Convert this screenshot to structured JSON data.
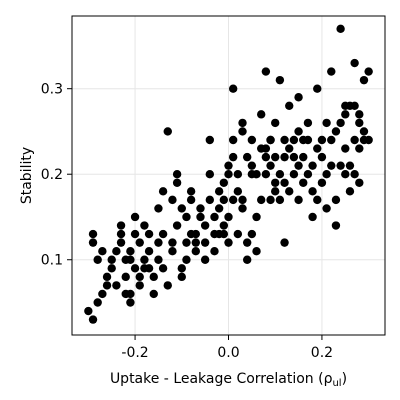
{
  "chart_data": {
    "type": "scatter",
    "title": "",
    "xlabel_main": "Uptake - Leakage Correlation (",
    "xlabel_symbol": "ρ",
    "xlabel_sub": "ul",
    "xlabel_close": ")",
    "ylabel": "Stability",
    "xlim": [
      -0.335,
      0.335
    ],
    "ylim": [
      0.012,
      0.385
    ],
    "xticks": [
      -0.2,
      0.0,
      0.2
    ],
    "xtick_labels": [
      "-0.2",
      "0.0",
      "0.2"
    ],
    "yticks": [
      0.1,
      0.2,
      0.3
    ],
    "ytick_labels": [
      "0.1",
      "0.2",
      "0.3"
    ],
    "grid": true,
    "legend": "none",
    "marker_color": "#000000",
    "series": [
      {
        "points": [
          [
            -0.3,
            0.04
          ],
          [
            -0.29,
            0.03
          ],
          [
            -0.28,
            0.05
          ],
          [
            -0.29,
            0.13
          ],
          [
            -0.29,
            0.12
          ],
          [
            -0.28,
            0.1
          ],
          [
            -0.27,
            0.11
          ],
          [
            -0.27,
            0.06
          ],
          [
            -0.26,
            0.07
          ],
          [
            -0.26,
            0.08
          ],
          [
            -0.25,
            0.09
          ],
          [
            -0.25,
            0.1
          ],
          [
            -0.24,
            0.07
          ],
          [
            -0.24,
            0.11
          ],
          [
            -0.23,
            0.14
          ],
          [
            -0.23,
            0.13
          ],
          [
            -0.23,
            0.12
          ],
          [
            -0.22,
            0.1
          ],
          [
            -0.22,
            0.08
          ],
          [
            -0.22,
            0.06
          ],
          [
            -0.21,
            0.05
          ],
          [
            -0.21,
            0.06
          ],
          [
            -0.21,
            0.1
          ],
          [
            -0.21,
            0.11
          ],
          [
            -0.2,
            0.15
          ],
          [
            -0.2,
            0.09
          ],
          [
            -0.2,
            0.13
          ],
          [
            -0.19,
            0.12
          ],
          [
            -0.19,
            0.08
          ],
          [
            -0.19,
            0.07
          ],
          [
            -0.18,
            0.09
          ],
          [
            -0.18,
            0.1
          ],
          [
            -0.18,
            0.14
          ],
          [
            -0.17,
            0.11
          ],
          [
            -0.17,
            0.13
          ],
          [
            -0.17,
            0.09
          ],
          [
            -0.16,
            0.06
          ],
          [
            -0.16,
            0.08
          ],
          [
            -0.15,
            0.16
          ],
          [
            -0.15,
            0.1
          ],
          [
            -0.15,
            0.12
          ],
          [
            -0.14,
            0.09
          ],
          [
            -0.14,
            0.13
          ],
          [
            -0.13,
            0.07
          ],
          [
            -0.13,
            0.25
          ],
          [
            -0.14,
            0.18
          ],
          [
            -0.12,
            0.17
          ],
          [
            -0.12,
            0.12
          ],
          [
            -0.12,
            0.11
          ],
          [
            -0.11,
            0.14
          ],
          [
            -0.11,
            0.2
          ],
          [
            -0.11,
            0.19
          ],
          [
            -0.1,
            0.16
          ],
          [
            -0.1,
            0.09
          ],
          [
            -0.1,
            0.08
          ],
          [
            -0.09,
            0.1
          ],
          [
            -0.09,
            0.12
          ],
          [
            -0.09,
            0.15
          ],
          [
            -0.08,
            0.13
          ],
          [
            -0.08,
            0.18
          ],
          [
            -0.08,
            0.17
          ],
          [
            -0.07,
            0.13
          ],
          [
            -0.07,
            0.11
          ],
          [
            -0.07,
            0.12
          ],
          [
            -0.06,
            0.15
          ],
          [
            -0.06,
            0.16
          ],
          [
            -0.05,
            0.14
          ],
          [
            -0.05,
            0.12
          ],
          [
            -0.05,
            0.1
          ],
          [
            -0.04,
            0.17
          ],
          [
            -0.04,
            0.24
          ],
          [
            -0.04,
            0.2
          ],
          [
            -0.03,
            0.11
          ],
          [
            -0.03,
            0.13
          ],
          [
            -0.03,
            0.15
          ],
          [
            -0.02,
            0.13
          ],
          [
            -0.02,
            0.18
          ],
          [
            -0.02,
            0.16
          ],
          [
            -0.01,
            0.14
          ],
          [
            -0.01,
            0.13
          ],
          [
            -0.01,
            0.17
          ],
          [
            -0.01,
            0.19
          ],
          [
            0.0,
            0.15
          ],
          [
            0.0,
            0.2
          ],
          [
            0.0,
            0.21
          ],
          [
            0.0,
            0.12
          ],
          [
            0.01,
            0.22
          ],
          [
            0.01,
            0.24
          ],
          [
            0.01,
            0.3
          ],
          [
            0.01,
            0.17
          ],
          [
            0.02,
            0.2
          ],
          [
            0.02,
            0.18
          ],
          [
            0.02,
            0.13
          ],
          [
            0.03,
            0.17
          ],
          [
            0.03,
            0.26
          ],
          [
            0.03,
            0.25
          ],
          [
            0.03,
            0.16
          ],
          [
            0.04,
            0.22
          ],
          [
            0.04,
            0.12
          ],
          [
            0.04,
            0.1
          ],
          [
            0.05,
            0.2
          ],
          [
            0.05,
            0.21
          ],
          [
            0.05,
            0.24
          ],
          [
            0.05,
            0.13
          ],
          [
            0.06,
            0.15
          ],
          [
            0.06,
            0.11
          ],
          [
            0.06,
            0.2
          ],
          [
            0.07,
            0.23
          ],
          [
            0.07,
            0.27
          ],
          [
            0.07,
            0.17
          ],
          [
            0.08,
            0.32
          ],
          [
            0.08,
            0.23
          ],
          [
            0.08,
            0.22
          ],
          [
            0.08,
            0.2
          ],
          [
            0.09,
            0.24
          ],
          [
            0.09,
            0.17
          ],
          [
            0.09,
            0.21
          ],
          [
            0.09,
            0.24
          ],
          [
            0.1,
            0.26
          ],
          [
            0.1,
            0.22
          ],
          [
            0.1,
            0.19
          ],
          [
            0.1,
            0.18
          ],
          [
            0.11,
            0.31
          ],
          [
            0.11,
            0.2
          ],
          [
            0.11,
            0.17
          ],
          [
            0.12,
            0.24
          ],
          [
            0.12,
            0.22
          ],
          [
            0.12,
            0.19
          ],
          [
            0.12,
            0.12
          ],
          [
            0.13,
            0.23
          ],
          [
            0.13,
            0.18
          ],
          [
            0.13,
            0.28
          ],
          [
            0.14,
            0.2
          ],
          [
            0.14,
            0.24
          ],
          [
            0.14,
            0.22
          ],
          [
            0.15,
            0.21
          ],
          [
            0.15,
            0.17
          ],
          [
            0.15,
            0.29
          ],
          [
            0.15,
            0.25
          ],
          [
            0.16,
            0.24
          ],
          [
            0.16,
            0.22
          ],
          [
            0.16,
            0.19
          ],
          [
            0.17,
            0.26
          ],
          [
            0.17,
            0.2
          ],
          [
            0.17,
            0.24
          ],
          [
            0.18,
            0.21
          ],
          [
            0.18,
            0.18
          ],
          [
            0.18,
            0.15
          ],
          [
            0.19,
            0.23
          ],
          [
            0.19,
            0.3
          ],
          [
            0.19,
            0.17
          ],
          [
            0.2,
            0.24
          ],
          [
            0.2,
            0.22
          ],
          [
            0.2,
            0.19
          ],
          [
            0.21,
            0.26
          ],
          [
            0.21,
            0.16
          ],
          [
            0.21,
            0.2
          ],
          [
            0.22,
            0.32
          ],
          [
            0.22,
            0.24
          ],
          [
            0.22,
            0.21
          ],
          [
            0.23,
            0.25
          ],
          [
            0.23,
            0.14
          ],
          [
            0.23,
            0.17
          ],
          [
            0.24,
            0.37
          ],
          [
            0.24,
            0.26
          ],
          [
            0.24,
            0.21
          ],
          [
            0.25,
            0.28
          ],
          [
            0.25,
            0.2
          ],
          [
            0.25,
            0.27
          ],
          [
            0.25,
            0.23
          ],
          [
            0.26,
            0.28
          ],
          [
            0.26,
            0.21
          ],
          [
            0.26,
            0.18
          ],
          [
            0.27,
            0.33
          ],
          [
            0.27,
            0.28
          ],
          [
            0.27,
            0.24
          ],
          [
            0.27,
            0.2
          ],
          [
            0.28,
            0.27
          ],
          [
            0.28,
            0.26
          ],
          [
            0.28,
            0.23
          ],
          [
            0.28,
            0.19
          ],
          [
            0.29,
            0.31
          ],
          [
            0.29,
            0.25
          ],
          [
            0.29,
            0.24
          ],
          [
            0.3,
            0.32
          ],
          [
            0.3,
            0.24
          ]
        ]
      }
    ]
  }
}
